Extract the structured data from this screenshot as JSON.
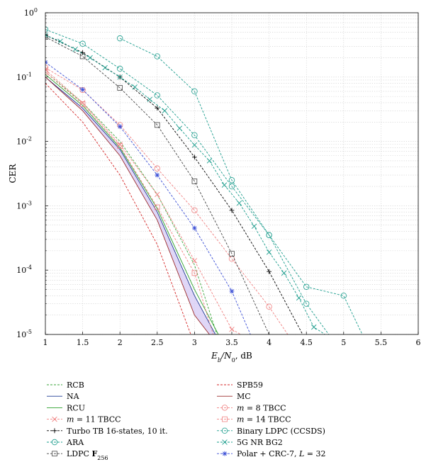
{
  "chart_data": {
    "type": "line",
    "title": "",
    "xlabel": "E_b/N_0, dB",
    "xlabel_parts": {
      "main": "E",
      "sub1": "b",
      "slash": "/N",
      "sub2": "0",
      "suffix": ", dB"
    },
    "ylabel": "CER",
    "xlim": [
      1,
      6
    ],
    "ylim": [
      1e-05,
      1
    ],
    "yscale": "log",
    "grid": true,
    "legend_position": "below",
    "x_ticks": [
      "1",
      "1.5",
      "2",
      "2.5",
      "3",
      "3.5",
      "4",
      "4.5",
      "5",
      "5.5",
      "6"
    ],
    "y_ticks": [
      {
        "base": "10",
        "exp": "-5"
      },
      {
        "base": "10",
        "exp": "-4"
      },
      {
        "base": "10",
        "exp": "-3"
      },
      {
        "base": "10",
        "exp": "-2"
      },
      {
        "base": "10",
        "exp": "-1"
      },
      {
        "base": "10",
        "exp": "0"
      }
    ],
    "shaded_band": {
      "between": [
        "NA",
        "MC"
      ],
      "color": "#d8cdf5"
    },
    "series": [
      {
        "name": "RCB",
        "legend": "RCB",
        "color": "#3aa63a",
        "dash": true,
        "marker": "none",
        "x": [
          1,
          1.5,
          2,
          2.5,
          3,
          3.3
        ],
        "y": [
          0.12,
          0.04,
          0.01,
          0.0015,
          0.00012,
          1e-05
        ]
      },
      {
        "name": "SPB59",
        "legend": "SPB59",
        "color": "#d62728",
        "dash": true,
        "marker": "none",
        "x": [
          1,
          1.5,
          2,
          2.5,
          2.95
        ],
        "y": [
          0.08,
          0.02,
          0.003,
          0.00025,
          1e-05
        ]
      },
      {
        "name": "NA",
        "legend": "NA",
        "color": "#1f3a93",
        "dash": false,
        "marker": "none",
        "x": [
          1,
          1.5,
          2,
          2.5,
          3,
          3.28
        ],
        "y": [
          0.1,
          0.033,
          0.0075,
          0.0008,
          4e-05,
          1e-05
        ]
      },
      {
        "name": "MC",
        "legend": "MC",
        "color": "#9b2b2b",
        "dash": false,
        "marker": "none",
        "x": [
          1,
          1.5,
          2,
          2.5,
          3,
          3.2
        ],
        "y": [
          0.1,
          0.03,
          0.006,
          0.0006,
          2e-05,
          1e-05
        ]
      },
      {
        "name": "RCU",
        "legend": "RCU",
        "color": "#2ca02c",
        "dash": false,
        "marker": "none",
        "x": [
          1,
          1.5,
          2,
          2.5,
          3,
          3.32
        ],
        "y": [
          0.11,
          0.036,
          0.008,
          0.0009,
          5e-05,
          1e-05
        ]
      },
      {
        "name": "m = 8 TBCC",
        "legend_main": "m",
        "legend_rest": " = 8 TBCC",
        "color": "#f08080",
        "dash": true,
        "marker": "circle",
        "x": [
          1,
          1.5,
          2,
          2.5,
          3,
          3.5,
          4,
          4.25
        ],
        "y": [
          0.14,
          0.063,
          0.018,
          0.0038,
          0.00085,
          0.00015,
          2.7e-05,
          1e-05
        ]
      },
      {
        "name": "m = 11 TBCC",
        "legend_main": "m",
        "legend_rest": " = 11 TBCC",
        "color": "#f08080",
        "dash": true,
        "marker": "x",
        "x": [
          1,
          1.5,
          2,
          2.5,
          3,
          3.5,
          3.62
        ],
        "y": [
          0.13,
          0.04,
          0.009,
          0.0015,
          0.00014,
          1.2e-05,
          1e-05
        ]
      },
      {
        "name": "m = 14 TBCC",
        "legend_main": "m",
        "legend_rest": " = 14 TBCC",
        "color": "#f08080",
        "dash": true,
        "marker": "square",
        "x": [
          1,
          1.5,
          2,
          2.5,
          3,
          3.25
        ],
        "y": [
          0.12,
          0.038,
          0.0085,
          0.00095,
          9e-05,
          1e-05
        ]
      },
      {
        "name": "Turbo TB 16-states, 10 it.",
        "legend": "Turbo TB 16-states, 10 it.",
        "color": "#000000",
        "dash": true,
        "marker": "plus",
        "x": [
          1,
          1.5,
          2,
          2.5,
          3,
          3.5,
          4,
          4.45
        ],
        "y": [
          0.45,
          0.24,
          0.1,
          0.033,
          0.0057,
          0.00085,
          9.5e-05,
          1e-05
        ]
      },
      {
        "name": "Binary LDPC (CCSDS)",
        "legend": "Binary LDPC (CCSDS)",
        "color": "#1a9c8c",
        "dash": true,
        "marker": "circle",
        "x": [
          2,
          2.5,
          3,
          3.5,
          4,
          4.5,
          5,
          5.25
        ],
        "y": [
          0.4,
          0.21,
          0.06,
          0.0025,
          0.00035,
          5.5e-05,
          4e-05,
          1e-05
        ]
      },
      {
        "name": "ARA",
        "legend": "ARA",
        "color": "#1a9c8c",
        "dash": true,
        "marker": "circle",
        "x": [
          1,
          1.5,
          2,
          2.5,
          3,
          3.5,
          4,
          4.5,
          4.8
        ],
        "y": [
          0.55,
          0.33,
          0.135,
          0.052,
          0.0125,
          0.002,
          0.00035,
          3e-05,
          1e-05
        ]
      },
      {
        "name": "5G NR BG2",
        "legend": "5G NR BG2",
        "color": "#1a9c8c",
        "dash": true,
        "marker": "x",
        "x": [
          1,
          1.2,
          1.4,
          1.6,
          1.8,
          2,
          2.2,
          2.4,
          2.6,
          2.8,
          3,
          3.2,
          3.4,
          3.6,
          3.8,
          4,
          4.2,
          4.4,
          4.6,
          4.75
        ],
        "y": [
          0.45,
          0.36,
          0.27,
          0.2,
          0.14,
          0.1,
          0.07,
          0.045,
          0.03,
          0.016,
          0.0088,
          0.005,
          0.0021,
          0.0011,
          0.00048,
          0.00019,
          9e-05,
          3.7e-05,
          1.3e-05,
          1e-05
        ]
      },
      {
        "name": "LDPC F256",
        "legend_main": "LDPC ",
        "legend_field": "F",
        "legend_sub": "256",
        "color": "#444444",
        "dash": true,
        "marker": "square",
        "x": [
          1,
          1.5,
          2,
          2.5,
          3,
          3.5,
          4
        ],
        "y": [
          0.42,
          0.21,
          0.068,
          0.018,
          0.0024,
          0.00018,
          1e-05
        ]
      },
      {
        "name": "Polar + CRC-7, L = 32",
        "legend_main": "Polar + CRC-7, ",
        "legend_L": "L",
        "legend_rest": " = 32",
        "color": "#3b4fd6",
        "dash": true,
        "marker": "star",
        "x": [
          1,
          1.5,
          2,
          2.5,
          3,
          3.5,
          3.75
        ],
        "y": [
          0.17,
          0.064,
          0.017,
          0.003,
          0.00045,
          4.7e-05,
          1e-05
        ]
      }
    ]
  }
}
